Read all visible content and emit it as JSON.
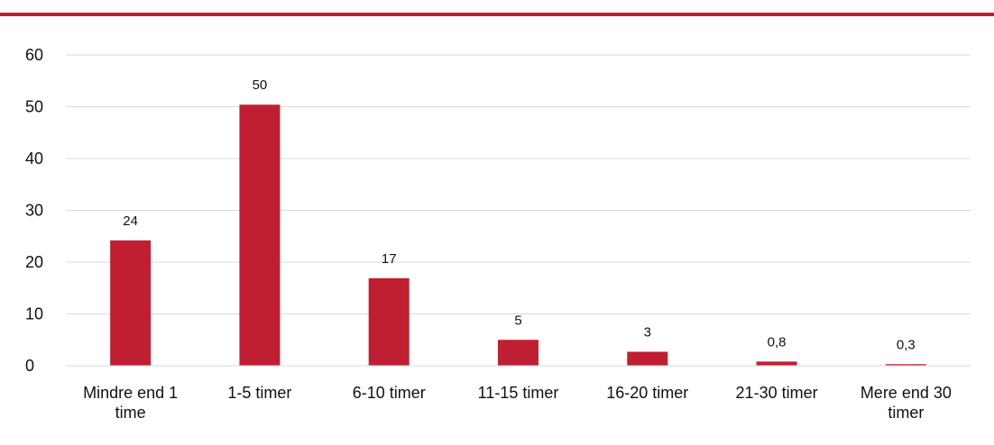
{
  "colors": {
    "accent": "#c01f31",
    "grid": "#d9d9d9"
  },
  "chart_data": {
    "type": "bar",
    "categories": [
      [
        "Mindre end 1",
        "time"
      ],
      [
        "1-5 timer"
      ],
      [
        "6-10 timer"
      ],
      [
        "11-15 timer"
      ],
      [
        "16-20 timer"
      ],
      [
        "21-30 timer"
      ],
      [
        "Mere end 30",
        "timer"
      ]
    ],
    "values": [
      24.2,
      50.4,
      16.9,
      5.0,
      2.7,
      0.8,
      0.3
    ],
    "data_labels": [
      "24",
      "50",
      "17",
      "5",
      "3",
      "0,8",
      "0,3"
    ],
    "yticks": [
      "0",
      "10",
      "20",
      "30",
      "40",
      "50",
      "60"
    ],
    "ylim": [
      0,
      60
    ],
    "grid": true,
    "legend": "none"
  }
}
